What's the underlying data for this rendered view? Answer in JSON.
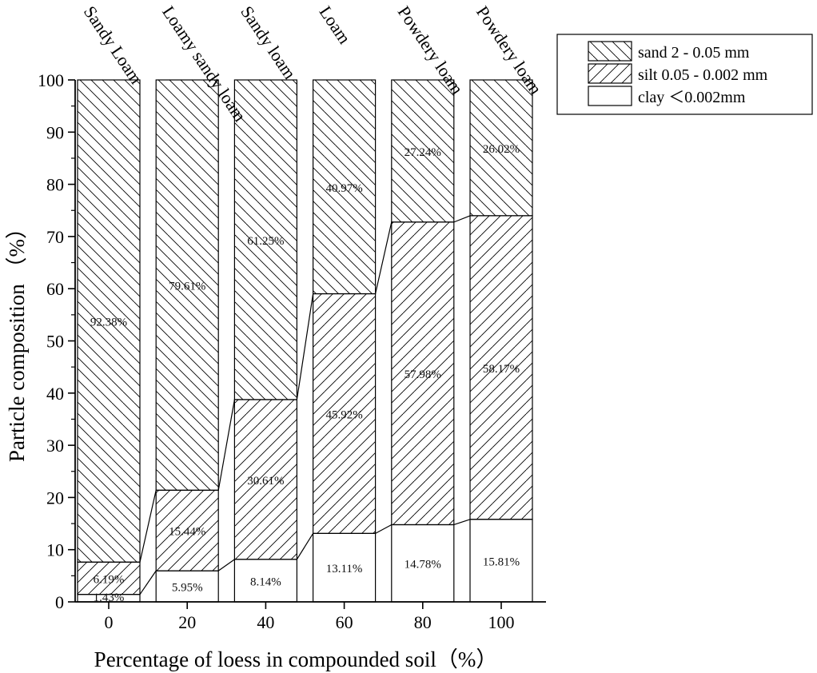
{
  "chart_data": {
    "type": "bar",
    "stacked": true,
    "categories": [
      "0",
      "20",
      "40",
      "60",
      "80",
      "100"
    ],
    "top_labels": [
      "Sandy Loam",
      "Loamy sandy loam",
      "Sandy loam",
      "Loam",
      "Powdery loam",
      "Powdery loam"
    ],
    "series": [
      {
        "name": "clay ＜0.002mm",
        "pattern": "none",
        "values": [
          1.43,
          5.95,
          8.14,
          13.11,
          14.78,
          15.81
        ],
        "labels": [
          "1.43%",
          "5.95%",
          "8.14%",
          "13.11%",
          "14.78%",
          "15.81%"
        ]
      },
      {
        "name": "silt 0.05 - 0.002 mm",
        "pattern": "forward-hatch",
        "values": [
          6.19,
          15.44,
          30.61,
          45.92,
          57.98,
          58.17
        ],
        "labels": [
          "6.19%",
          "15.44%",
          "30.61%",
          "45.92%",
          "57.98%",
          "58.17%"
        ]
      },
      {
        "name": "sand 2 - 0.05 mm",
        "pattern": "back-hatch",
        "values": [
          92.38,
          79.61,
          61.25,
          40.97,
          27.24,
          26.02
        ],
        "labels": [
          "92.38%",
          "79.61%",
          "61.25%",
          "40.97%",
          "27.24%",
          "26.02%"
        ]
      }
    ],
    "legend_order": [
      "sand 2 - 0.05 mm",
      "silt 0.05 - 0.002 mm",
      "clay ＜0.002mm"
    ],
    "xlabel": "Percentage of loess in compounded soil（%）",
    "ylabel": "Particle composition （%）",
    "ylim": [
      0,
      100
    ],
    "yticks": [
      0,
      10,
      20,
      30,
      40,
      50,
      60,
      70,
      80,
      90,
      100
    ],
    "grid": false,
    "legend_position": "top-right",
    "connector_lines": true
  }
}
